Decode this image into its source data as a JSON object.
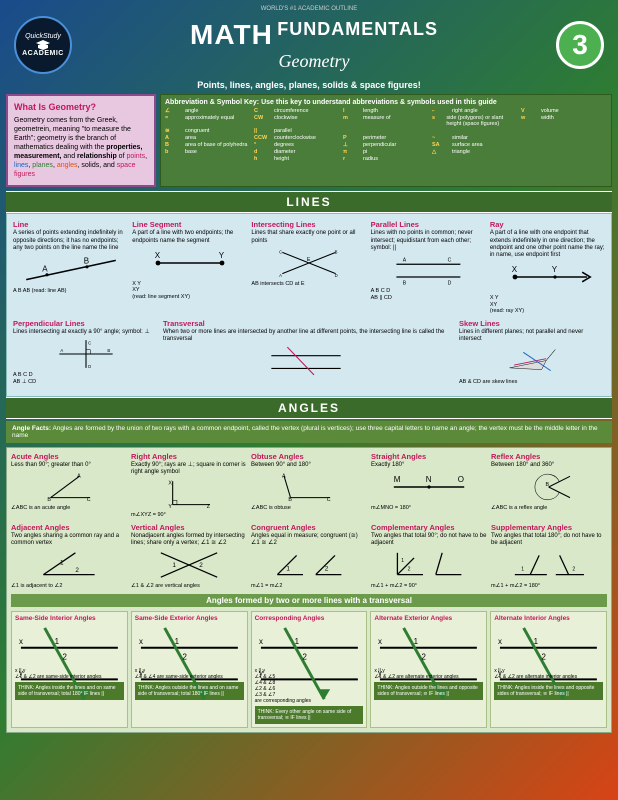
{
  "header": {
    "outline": "WORLD'S #1 ACADEMIC OUTLINE",
    "badge_top": "QuickStudy",
    "badge_bot": "ACADEMIC",
    "title": "MATH",
    "sub1": "FUNDAMENTALS",
    "sub2": "Geometry",
    "num": "3",
    "tagline": "Points, lines, angles, planes, solids & space figures!"
  },
  "intro": {
    "title": "What Is Geometry?",
    "body": "Geometry comes from the Greek, geometrein, meaning \"to measure the Earth\"; geometry is the branch of mathematics dealing with the properties, measurement, and relationship of points, lines, planes, angles, solids, and space figures"
  },
  "key": {
    "title": "Abbreviation & Symbol Key: Use this key to understand abbreviations & symbols used in this guide",
    "items": [
      {
        "s": "∠",
        "d": "angle"
      },
      {
        "s": "C",
        "d": "circumference"
      },
      {
        "s": "l",
        "d": "length"
      },
      {
        "s": "⌐",
        "d": "right angle"
      },
      {
        "s": "V",
        "d": "volume"
      },
      {
        "s": "≈",
        "d": "approximately equal"
      },
      {
        "s": "CW",
        "d": "clockwise"
      },
      {
        "s": "m",
        "d": "measure of"
      },
      {
        "s": "s",
        "d": "side (polygons) or slant height (space figures)"
      },
      {
        "s": "w",
        "d": "width"
      },
      {
        "s": "≅",
        "d": "congruent"
      },
      {
        "s": "||",
        "d": "parallel"
      },
      {
        "s": "",
        "d": ""
      },
      {
        "s": "",
        "d": ""
      },
      {
        "s": "",
        "d": ""
      },
      {
        "s": "A",
        "d": "area"
      },
      {
        "s": "CCW",
        "d": "counterclockwise"
      },
      {
        "s": "P",
        "d": "perimeter"
      },
      {
        "s": "~",
        "d": "similar"
      },
      {
        "s": "",
        "d": ""
      },
      {
        "s": "B",
        "d": "area of base of polyhedra"
      },
      {
        "s": "°",
        "d": "degrees"
      },
      {
        "s": "⊥",
        "d": "perpendicular"
      },
      {
        "s": "SA",
        "d": "surface area"
      },
      {
        "s": "",
        "d": ""
      },
      {
        "s": "b",
        "d": "base"
      },
      {
        "s": "d",
        "d": "diameter"
      },
      {
        "s": "π",
        "d": "pi"
      },
      {
        "s": "△",
        "d": "triangle"
      },
      {
        "s": "",
        "d": ""
      },
      {
        "s": "",
        "d": ""
      },
      {
        "s": "h",
        "d": "height"
      },
      {
        "s": "r",
        "d": "radius"
      },
      {
        "s": "",
        "d": ""
      },
      {
        "s": "",
        "d": ""
      }
    ]
  },
  "sections": {
    "lines": "LINES",
    "angles": "ANGLES"
  },
  "lines": {
    "r1": [
      {
        "t": "Line",
        "d": "A series of points extending indefinitely in opposite directions; it has no endpoints; any two points on the line name the line",
        "cap": "A   B  AB (read: line AB)"
      },
      {
        "t": "Line Segment",
        "d": "A part of a line with two endpoints; the endpoints name the segment",
        "cap": "X   Y\nXY\n(read: line segment XY)"
      },
      {
        "t": "Intersecting Lines",
        "d": "Lines that share exactly one point or all points",
        "cap": "AB intersects CD at E"
      },
      {
        "t": "Parallel Lines",
        "d": "Lines with no points in common; never intersect; equidistant from each other; symbol: ||",
        "cap": "A  B  C  D\nAB || CD"
      },
      {
        "t": "Ray",
        "d": "A part of a line with one endpoint that extends indefinitely in one direction; the endpoint and one other point name the ray; in name, use endpoint first",
        "cap": "X   Y\nXY\n(read: ray XY)"
      }
    ],
    "r2": [
      {
        "t": "Perpendicular Lines",
        "d": "Lines intersecting at exactly a 90° angle; symbol: ⊥",
        "cap": "A  B  C  D\nAB ⊥ CD"
      },
      {
        "t": "Transversal",
        "d": "When two or more lines are intersected by another line at different points, the intersecting line is called the transversal",
        "cap": ""
      },
      {
        "t": "Skew Lines",
        "d": "Lines in different planes; not parallel and never intersect",
        "cap": "AB & CD are skew lines"
      }
    ]
  },
  "angle_facts": {
    "t": "Angle Facts:",
    "d": "Angles are formed by the union of two rays with a common endpoint, called the vertex (plural is vertices); use three capital letters to name an angle; the vertex must be the middle letter in the name"
  },
  "angles": {
    "r1": [
      {
        "t": "Acute Angles",
        "d": "Less than 90°; greater than 0°",
        "cap": "∠ABC is an acute angle"
      },
      {
        "t": "Right Angles",
        "d": "Exactly 90°; rays are ⊥; square in corner is right angle symbol",
        "cap": "m∠XYZ = 90°"
      },
      {
        "t": "Obtuse Angles",
        "d": "Between 90° and 180°",
        "cap": "∠ABC is obtuse"
      },
      {
        "t": "Straight Angles",
        "d": "Exactly 180°",
        "cap": "m∠MNO = 180°"
      },
      {
        "t": "Reflex Angles",
        "d": "Between 180° and 360°",
        "cap": "∠ABC is a reflex angle"
      }
    ],
    "r2": [
      {
        "t": "Adjacent Angles",
        "d": "Two angles sharing a common ray and a common vertex",
        "cap": "∠1 is adjacent to ∠2"
      },
      {
        "t": "Vertical Angles",
        "d": "Nonadjacent angles formed by intersecting lines; share only a vertex; ∠1 ≅ ∠2",
        "cap": "∠1 & ∠2 are vertical angles"
      },
      {
        "t": "Congruent Angles",
        "d": "Angles equal in measure; congruent (≅) ∠1 ≅ ∠2",
        "cap": "m∠1 = m∠2"
      },
      {
        "t": "Complementary Angles",
        "d": "Two angles that total 90°; do not have to be adjacent",
        "cap": "m∠1 + m∠2 = 90°"
      },
      {
        "t": "Supplementary Angles",
        "d": "Two angles that total 180°; do not have to be adjacent",
        "cap": "m∠1 + m∠2 = 180°"
      }
    ]
  },
  "transv": {
    "bar": "Angles formed by two or more lines with a transversal",
    "cards": [
      {
        "t": "Same-Side Interior Angles",
        "a": "∠1 & ∠2 are same-side interior angles",
        "think": "THINK: Angles inside the lines and on same side of transversal; total 180° IF lines ||"
      },
      {
        "t": "Same-Side Exterior Angles",
        "a": "∠3 & ∠4 are same-side exterior angles",
        "think": "THINK: Angles outside the lines and on same side of transversal; total 180° IF lines ||"
      },
      {
        "t": "Corresponding Angles",
        "a": "∠1 & ∠5\n∠4 & ∠8\n∠2 & ∠6\n∠3 & ∠7\nare corresponding angles",
        "think": "THINK: Every other angle on same side of transversal; ≅ IF lines ||"
      },
      {
        "t": "Alternate Exterior Angles",
        "a": "∠1 & ∠2 are alternate exterior angles",
        "think": "THINK: Angles outside the lines and opposite sides of transversal; ≅ IF lines ||"
      },
      {
        "t": "Alternate Interior Angles",
        "a": "∠1 & ∠2 are alternate interior angles",
        "think": "THINK: Angles inside the lines and opposite sides of transversal; ≅ IF lines ||"
      }
    ]
  },
  "colors": {
    "bg_blue": "#1a4b8c",
    "bg_green": "#4a7c3a",
    "accent": "#c2185b",
    "lines_bg": "#d4e8f0",
    "angles_bg": "#d8e8c8"
  }
}
